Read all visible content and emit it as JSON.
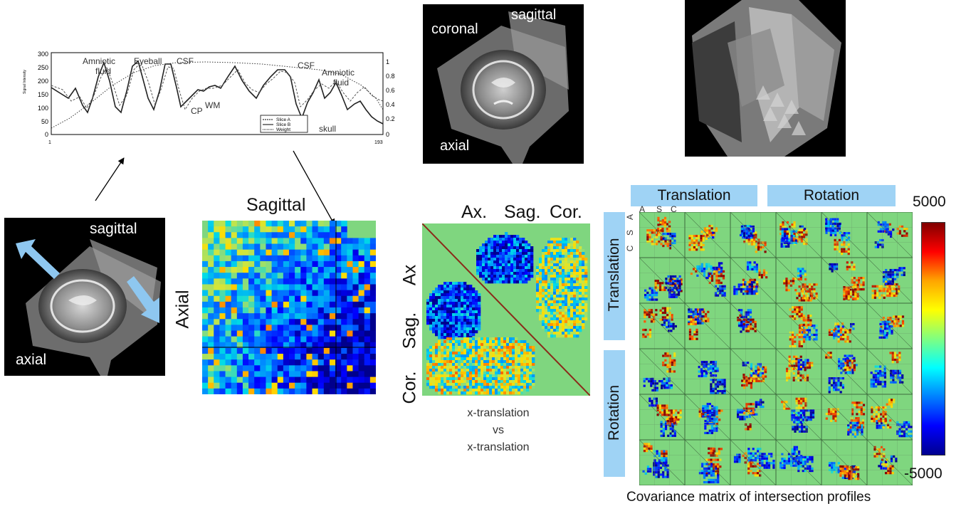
{
  "profile_plot": {
    "y_left_ticks": [
      "300",
      "250",
      "200",
      "150",
      "100",
      "50",
      "0"
    ],
    "y_right_ticks": [
      "1",
      "0.8",
      "0.6",
      "0.4",
      "0.2",
      "0"
    ],
    "y_left_label": "Signal Intensity",
    "x_ticks": [
      "1",
      "193"
    ],
    "annotations": [
      "Amniotic",
      "fluid",
      "Eyeball",
      "CSF",
      "CP",
      "WM",
      "CSF",
      "Amniotic",
      "fluid",
      "skull"
    ],
    "legend": [
      "Slice A",
      "Slice B",
      "Weight"
    ]
  },
  "top_center_image": {
    "labels": {
      "coronal": "coronal",
      "sagittal": "sagittal",
      "axial": "axial"
    }
  },
  "left_image": {
    "labels": {
      "sagittal": "sagittal",
      "axial": "axial"
    }
  },
  "heatmap1": {
    "title": "Sagittal",
    "ylabel": "Axial"
  },
  "matrix2": {
    "col_labels": [
      "Ax.",
      "Sag.",
      "Cor."
    ],
    "row_labels": [
      "Ax",
      "Sag.",
      "Cor."
    ],
    "caption": [
      "x-translation",
      "vs",
      "x-translation"
    ]
  },
  "cov_matrix": {
    "top_bands": [
      "Translation",
      "Rotation"
    ],
    "side_bands": [
      "Translation",
      "Rotation"
    ],
    "sub_labels_top": [
      "A",
      "S",
      "C"
    ],
    "sub_labels_side": [
      "A",
      "S",
      "C"
    ],
    "colorbar_max": "5000",
    "colorbar_min": "-5000",
    "caption": "Covariance matrix of intersection profiles"
  },
  "colors": {
    "band": "#9fd3f5",
    "green": "#7fd67f"
  }
}
